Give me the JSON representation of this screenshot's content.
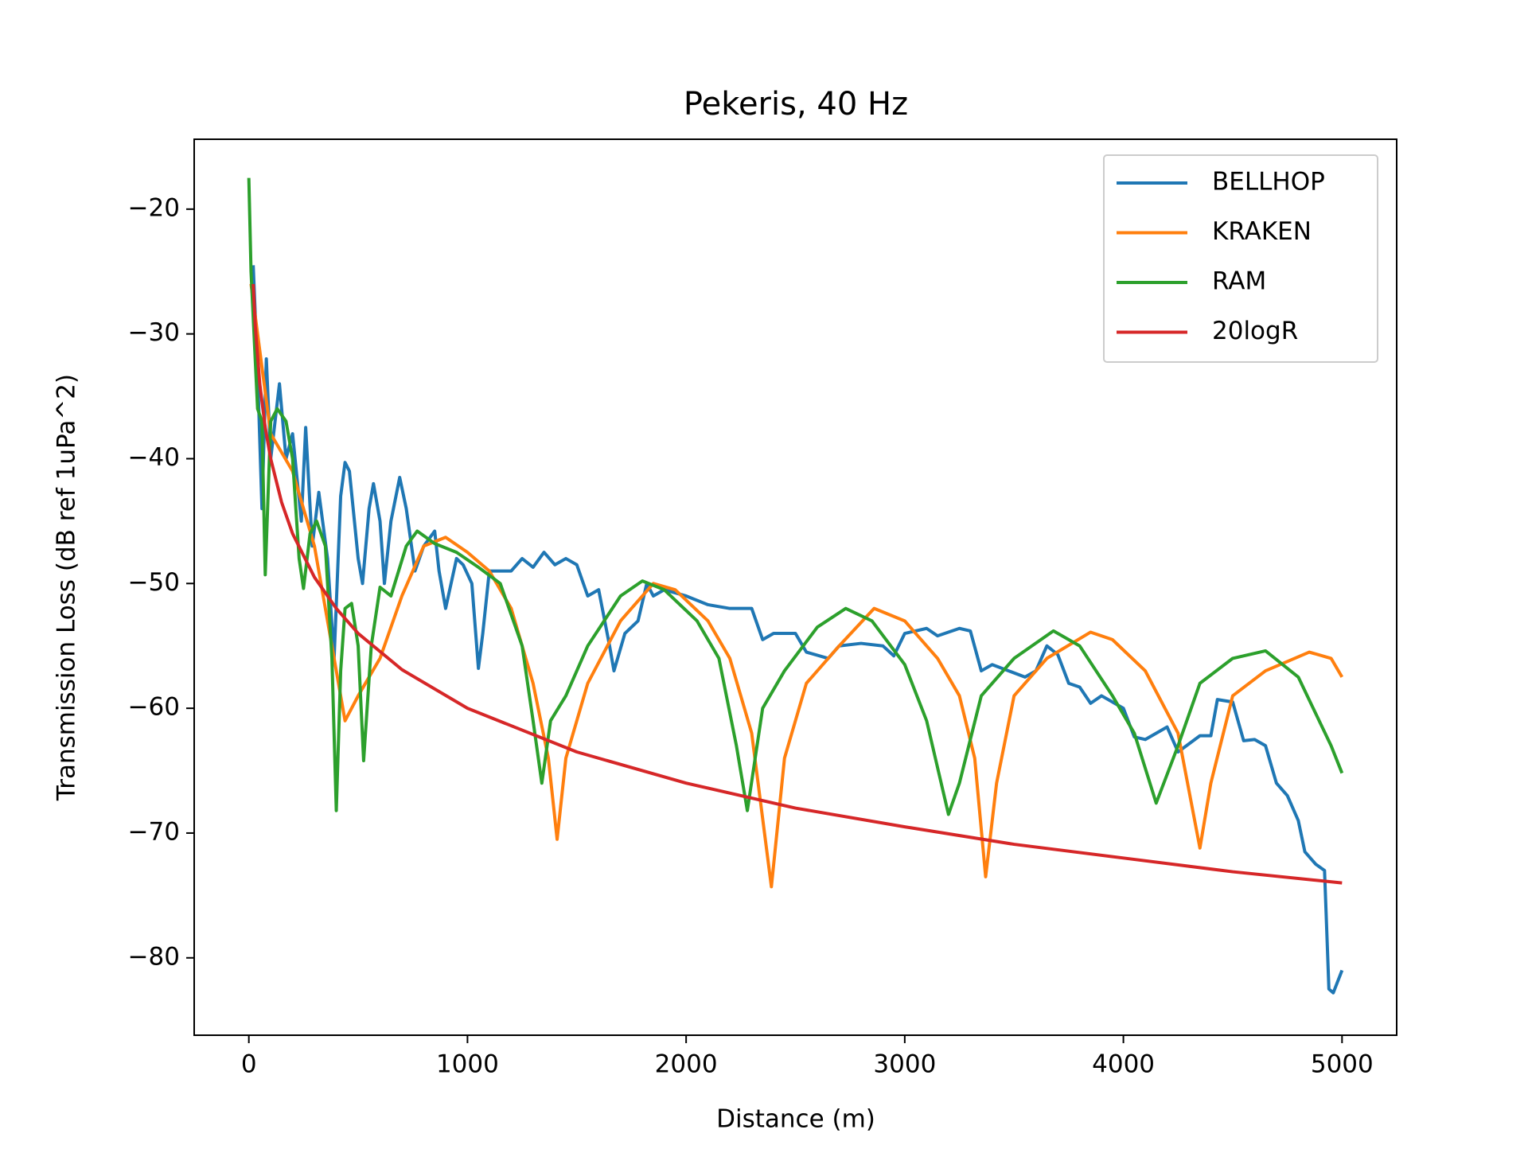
{
  "chart_data": {
    "type": "line",
    "title": "Pekeris, 40 Hz",
    "x_label": "Distance (m)",
    "y_label": "Transmission Loss (dB ref 1uPa^2)",
    "xlim": [
      -250,
      5250
    ],
    "ylim": [
      -86.2,
      -14.4
    ],
    "xticks": [
      0,
      1000,
      2000,
      3000,
      4000,
      5000
    ],
    "yticks": [
      {
        "value": -80,
        "label": "−80"
      },
      {
        "value": -70,
        "label": "−70"
      },
      {
        "value": -60,
        "label": "−60"
      },
      {
        "value": -50,
        "label": "−50"
      },
      {
        "value": -40,
        "label": "−40"
      },
      {
        "value": -30,
        "label": "−30"
      },
      {
        "value": -20,
        "label": "−20"
      }
    ],
    "grid": false,
    "legend": "upper right",
    "series": [
      {
        "name": "BELLHOP",
        "color": "#1f77b4",
        "x": [
          20,
          40,
          60,
          80,
          100,
          140,
          170,
          200,
          240,
          260,
          290,
          320,
          360,
          390,
          420,
          440,
          460,
          500,
          520,
          550,
          570,
          600,
          620,
          650,
          690,
          720,
          760,
          800,
          850,
          870,
          900,
          950,
          980,
          1020,
          1050,
          1070,
          1100,
          1150,
          1200,
          1250,
          1300,
          1350,
          1400,
          1450,
          1500,
          1550,
          1600,
          1650,
          1670,
          1720,
          1780,
          1820,
          1850,
          1900,
          2000,
          2100,
          2200,
          2300,
          2350,
          2400,
          2500,
          2550,
          2650,
          2700,
          2800,
          2900,
          2950,
          3000,
          3100,
          3150,
          3250,
          3300,
          3350,
          3400,
          3550,
          3600,
          3650,
          3700,
          3750,
          3800,
          3850,
          3900,
          4000,
          4050,
          4100,
          4200,
          4250,
          4350,
          4400,
          4430,
          4500,
          4550,
          4600,
          4650,
          4700,
          4750,
          4800,
          4830,
          4880,
          4920,
          4940,
          4960,
          5000
        ],
        "values": [
          -24.5,
          -33,
          -44,
          -32,
          -40,
          -34,
          -40,
          -38,
          -45,
          -37.5,
          -47,
          -42.7,
          -48,
          -56,
          -43,
          -40.3,
          -41,
          -48,
          -50,
          -44,
          -42,
          -45,
          -50,
          -45,
          -41.5,
          -44,
          -49,
          -47,
          -45.8,
          -49,
          -52,
          -48,
          -48.5,
          -50,
          -56.8,
          -54,
          -49,
          -49,
          -49,
          -48,
          -48.7,
          -47.5,
          -48.5,
          -48,
          -48.5,
          -51,
          -50.5,
          -55,
          -57,
          -54,
          -53,
          -50,
          -51,
          -50.5,
          -51,
          -51.7,
          -52,
          -52,
          -54.5,
          -54,
          -54,
          -55.5,
          -56,
          -55,
          -54.8,
          -55,
          -55.8,
          -54,
          -53.6,
          -54.2,
          -53.6,
          -53.8,
          -57,
          -56.5,
          -57.5,
          -57,
          -55,
          -55.7,
          -58,
          -58.3,
          -59.6,
          -59,
          -60,
          -62.3,
          -62.5,
          -61.5,
          -63.5,
          -62.2,
          -62.2,
          -59.3,
          -59.5,
          -62.6,
          -62.5,
          -63,
          -66,
          -67,
          -69,
          -71.5,
          -72.5,
          -73,
          -82.5,
          -82.8,
          -81
        ]
      },
      {
        "name": "KRAKEN",
        "color": "#ff7f0e",
        "x": [
          10,
          100,
          200,
          300,
          400,
          440,
          500,
          600,
          700,
          800,
          900,
          1000,
          1100,
          1200,
          1300,
          1370,
          1410,
          1450,
          1550,
          1700,
          1850,
          1950,
          2100,
          2200,
          2300,
          2390,
          2450,
          2550,
          2700,
          2860,
          3000,
          3150,
          3250,
          3320,
          3370,
          3420,
          3500,
          3650,
          3850,
          3950,
          4100,
          4250,
          4350,
          4400,
          4500,
          4650,
          4850,
          4950,
          5000
        ],
        "values": [
          -26,
          -38,
          -41,
          -47,
          -57,
          -61,
          -59,
          -56,
          -51,
          -47,
          -46.3,
          -47.5,
          -49,
          -52,
          -58,
          -64,
          -70.5,
          -64,
          -58,
          -53,
          -50,
          -50.5,
          -53,
          -56,
          -62,
          -74.3,
          -64,
          -58,
          -55,
          -52,
          -53,
          -56,
          -59,
          -64,
          -73.5,
          -66,
          -59,
          -56,
          -53.9,
          -54.5,
          -57,
          -62,
          -71.2,
          -66,
          -59,
          -57,
          -55.5,
          -56,
          -57.5
        ]
      },
      {
        "name": "RAM",
        "color": "#2ca02c",
        "x": [
          0,
          10,
          40,
          60,
          75,
          100,
          130,
          170,
          200,
          230,
          250,
          280,
          310,
          350,
          380,
          400,
          420,
          440,
          470,
          500,
          525,
          560,
          600,
          650,
          720,
          770,
          850,
          950,
          1050,
          1150,
          1250,
          1300,
          1340,
          1380,
          1450,
          1550,
          1700,
          1800,
          1900,
          2050,
          2150,
          2230,
          2280,
          2350,
          2450,
          2600,
          2730,
          2850,
          3000,
          3100,
          3200,
          3250,
          3350,
          3500,
          3680,
          3800,
          3950,
          4050,
          4150,
          4250,
          4350,
          4500,
          4650,
          4800,
          4950,
          5000
        ],
        "values": [
          -17.5,
          -25,
          -36,
          -37,
          -49.3,
          -37,
          -36,
          -37,
          -40,
          -48,
          -50.4,
          -46,
          -45,
          -47,
          -56,
          -68.2,
          -57,
          -52,
          -51.6,
          -55,
          -64.2,
          -55,
          -50.3,
          -51,
          -47,
          -45.8,
          -46.8,
          -47.5,
          -48.7,
          -50,
          -55,
          -61,
          -66,
          -61,
          -59,
          -55,
          -51,
          -49.8,
          -50.5,
          -53,
          -56,
          -63,
          -68.2,
          -60,
          -57,
          -53.5,
          -52,
          -53,
          -56.5,
          -61,
          -68.5,
          -66,
          -59,
          -56,
          -53.8,
          -55,
          -59,
          -62,
          -67.6,
          -63,
          -58,
          -56,
          -55.4,
          -57.5,
          -63,
          -65.2
        ]
      },
      {
        "name": "20logR",
        "color": "#d62728",
        "x": [
          20,
          30,
          50,
          75,
          100,
          150,
          200,
          300,
          400,
          500,
          700,
          1000,
          1500,
          2000,
          2500,
          3000,
          3500,
          4000,
          4500,
          5000
        ],
        "values": [
          -26,
          -29.5,
          -34,
          -37.5,
          -40,
          -43.5,
          -46,
          -49.5,
          -52,
          -54,
          -56.9,
          -60,
          -63.5,
          -66,
          -68,
          -69.5,
          -70.9,
          -72,
          -73.1,
          -74
        ]
      }
    ]
  }
}
